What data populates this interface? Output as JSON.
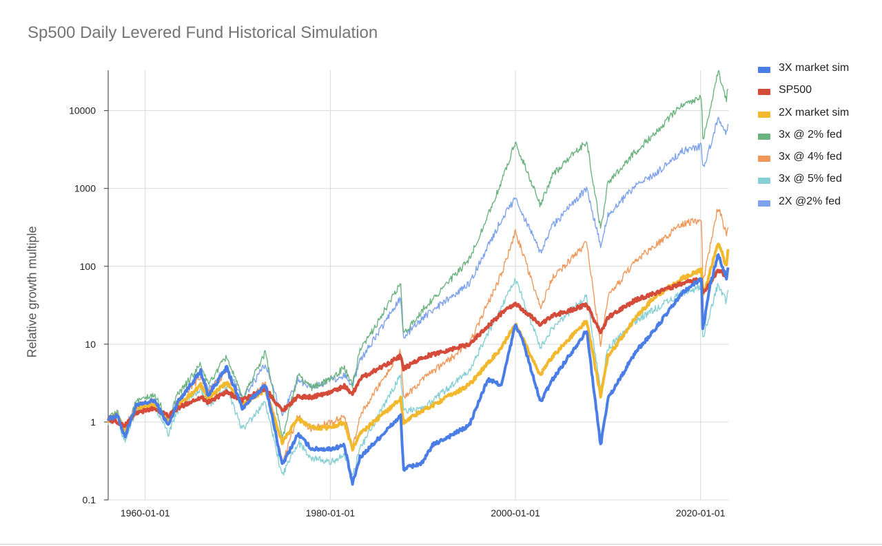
{
  "chart_data": {
    "type": "line",
    "title": "Sp500 Daily Levered Fund Historical Simulation",
    "xlabel": "",
    "ylabel": "Relative growth multiple",
    "yscale": "log",
    "ylim": [
      0.1,
      33000
    ],
    "xlim": [
      1956.0,
      2023.0
    ],
    "y_ticks": [
      0.1,
      1,
      10,
      100,
      1000,
      10000
    ],
    "y_tick_labels": [
      "0.1",
      "1",
      "10",
      "100",
      "1000",
      "10000"
    ],
    "x_ticks": [
      1960,
      1980,
      2000,
      2020
    ],
    "x_tick_labels": [
      "1960-01-01",
      "1980-01-01",
      "2000-01-01",
      "2020-01-01"
    ],
    "legend": "right",
    "series": [
      {
        "name": "3X market sim",
        "color": "#4a7ee6",
        "thick": true,
        "x": [
          1956,
          1957,
          1957.8,
          1959,
          1961,
          1962.5,
          1963.5,
          1966,
          1966.8,
          1968.8,
          1970.5,
          1973,
          1974.8,
          1976.5,
          1978,
          1980,
          1981.5,
          1982.4,
          1983.2,
          1987.6,
          1987.9,
          1990,
          1991,
          1995,
          1997,
          1998.5,
          2000,
          2000.8,
          2002.7,
          2004,
          2007.7,
          2009.2,
          2010,
          2013,
          2015,
          2018,
          2020.1,
          2020.25,
          2021,
          2021.9,
          2022.8,
          2023
        ],
        "y": [
          1.1,
          1.2,
          0.65,
          1.6,
          1.9,
          0.9,
          1.8,
          4.5,
          2.2,
          5.0,
          1.5,
          3.0,
          0.28,
          0.7,
          0.45,
          0.45,
          0.5,
          0.16,
          0.35,
          1.2,
          0.25,
          0.3,
          0.5,
          0.9,
          3.5,
          3.0,
          18,
          11,
          1.8,
          3.5,
          15,
          0.5,
          2.0,
          8.0,
          15,
          45,
          70,
          15,
          55,
          140,
          70,
          100
        ]
      },
      {
        "name": "SP500",
        "color": "#d54b3a",
        "thick": true,
        "x": [
          1956,
          1957.8,
          1959,
          1961,
          1962.5,
          1963.5,
          1966,
          1966.8,
          1968.8,
          1970.5,
          1973,
          1974.8,
          1976.5,
          1978,
          1980,
          1981.5,
          1982.4,
          1983.2,
          1987.6,
          1987.9,
          1990,
          1995,
          1998.5,
          2000,
          2002.7,
          2004,
          2007.7,
          2009.2,
          2010,
          2013,
          2015,
          2018,
          2020.1,
          2020.25,
          2021.9,
          2022.8,
          2023
        ],
        "y": [
          1.1,
          0.9,
          1.3,
          1.5,
          1.2,
          1.5,
          2.1,
          1.8,
          2.4,
          1.9,
          2.7,
          1.4,
          2.1,
          2.1,
          2.4,
          2.9,
          2.3,
          3.6,
          7.0,
          4.8,
          6.8,
          10,
          25,
          33,
          18,
          23,
          32,
          14,
          22,
          37,
          45,
          60,
          68,
          45,
          90,
          75,
          95
        ]
      },
      {
        "name": "2X market sim",
        "color": "#f2b92e",
        "thick": true,
        "x": [
          1956,
          1957,
          1957.8,
          1959,
          1961,
          1962.5,
          1963.5,
          1966,
          1966.8,
          1968.8,
          1970.5,
          1973,
          1974.8,
          1976.5,
          1978,
          1980,
          1981.5,
          1982.4,
          1983.2,
          1987.6,
          1987.9,
          1990,
          1995,
          1998.5,
          2000,
          2002.7,
          2004,
          2007.7,
          2009.2,
          2010,
          2013,
          2015,
          2018,
          2020.1,
          2020.25,
          2021.9,
          2022.8,
          2023
        ],
        "y": [
          1.05,
          1.2,
          0.8,
          1.5,
          1.7,
          1.0,
          1.6,
          3.0,
          2.0,
          3.2,
          1.7,
          2.6,
          0.55,
          1.1,
          0.85,
          0.85,
          1.0,
          0.45,
          0.7,
          2.0,
          1.0,
          1.4,
          3.0,
          9.0,
          18,
          4.0,
          7.0,
          20,
          2.2,
          7.0,
          22,
          40,
          70,
          90,
          40,
          200,
          100,
          190
        ]
      },
      {
        "name": "3x @ 2% fed",
        "color": "#6db380",
        "thick": false,
        "x": [
          1956,
          1957,
          1957.8,
          1959,
          1961,
          1962.5,
          1963.5,
          1966,
          1966.8,
          1968.8,
          1970.5,
          1973,
          1974.8,
          1976.5,
          1978,
          1980,
          1981.5,
          1982.4,
          1983.2,
          1987.6,
          1987.9,
          1990,
          1995,
          1998.5,
          2000,
          2002.7,
          2004,
          2007.7,
          2009.2,
          2010,
          2013,
          2015,
          2018,
          2020.1,
          2020.25,
          2021.9,
          2022.8,
          2023
        ],
        "y": [
          1.1,
          1.3,
          0.75,
          1.8,
          2.2,
          1.1,
          2.2,
          5.5,
          3.0,
          7.0,
          2.0,
          8.0,
          0.6,
          4.0,
          2.8,
          3.5,
          5.0,
          3.0,
          8.0,
          60,
          13,
          28,
          120,
          1200,
          4000,
          600,
          1500,
          4000,
          300,
          1200,
          3000,
          5000,
          12000,
          15000,
          4000,
          32000,
          14000,
          22000
        ]
      },
      {
        "name": "3x @ 4% fed",
        "color": "#f0975a",
        "thick": false,
        "x": [
          1956,
          1957,
          1957.8,
          1959,
          1961,
          1962.5,
          1963.5,
          1966,
          1966.8,
          1968.8,
          1970.5,
          1973,
          1974.8,
          1976.5,
          1978,
          1980,
          1981.5,
          1982.4,
          1983.2,
          1987.6,
          1987.9,
          1990,
          1995,
          1998.5,
          2000,
          2002.7,
          2004,
          2007.7,
          2009.2,
          2010,
          2013,
          2015,
          2018,
          2020.1,
          2020.25,
          2021.9,
          2022.8,
          2023
        ],
        "y": [
          1.05,
          1.25,
          0.7,
          1.6,
          1.9,
          0.95,
          1.8,
          3.8,
          2.4,
          4.5,
          1.5,
          3.2,
          0.3,
          1.2,
          0.8,
          1.0,
          1.2,
          0.45,
          1.2,
          8.0,
          2.0,
          3.5,
          10,
          80,
          280,
          30,
          70,
          200,
          10,
          40,
          120,
          180,
          350,
          400,
          60,
          600,
          250,
          380
        ]
      },
      {
        "name": "3x @ 5% fed",
        "color": "#86cfd4",
        "thick": false,
        "x": [
          1956,
          1957,
          1957.8,
          1959,
          1961,
          1962.5,
          1963.5,
          1966,
          1966.8,
          1968.8,
          1970.5,
          1973,
          1974.8,
          1976.5,
          1978,
          1980,
          1981.5,
          1982.4,
          1983.2,
          1987.6,
          1987.9,
          1990,
          1995,
          1998.5,
          2000,
          2002.7,
          2004,
          2007.7,
          2009.2,
          2010,
          2013,
          2015,
          2018,
          2020.1,
          2020.25,
          2021.9,
          2022.8,
          2023
        ],
        "y": [
          1.0,
          1.15,
          0.55,
          1.4,
          1.6,
          0.7,
          1.4,
          2.7,
          1.6,
          2.8,
          0.8,
          1.8,
          0.2,
          0.55,
          0.35,
          0.3,
          0.38,
          0.2,
          0.45,
          4.0,
          1.4,
          1.5,
          4.5,
          30,
          70,
          9.0,
          16,
          42,
          2.5,
          9.0,
          20,
          28,
          45,
          55,
          12,
          60,
          35,
          50
        ]
      },
      {
        "name": "2X @2% fed",
        "color": "#7ea3ec",
        "thick": false,
        "x": [
          1956,
          1957,
          1957.8,
          1959,
          1961,
          1962.5,
          1963.5,
          1966,
          1966.8,
          1968.8,
          1970.5,
          1973,
          1974.8,
          1976.5,
          1978,
          1980,
          1981.5,
          1982.4,
          1983.2,
          1987.6,
          1987.9,
          1990,
          1995,
          1998.5,
          2000,
          2002.7,
          2004,
          2007.7,
          2009.2,
          2010,
          2013,
          2015,
          2018,
          2020.1,
          2020.25,
          2021.9,
          2022.8,
          2023
        ],
        "y": [
          1.08,
          1.25,
          0.85,
          1.6,
          1.8,
          1.05,
          1.9,
          4.2,
          2.6,
          5.0,
          2.0,
          5.5,
          1.2,
          3.5,
          2.8,
          3.4,
          4.0,
          3.0,
          6.0,
          40,
          12,
          22,
          60,
          400,
          750,
          150,
          330,
          1000,
          180,
          450,
          1100,
          1500,
          3000,
          3500,
          1700,
          8000,
          5000,
          7000
        ]
      }
    ]
  }
}
